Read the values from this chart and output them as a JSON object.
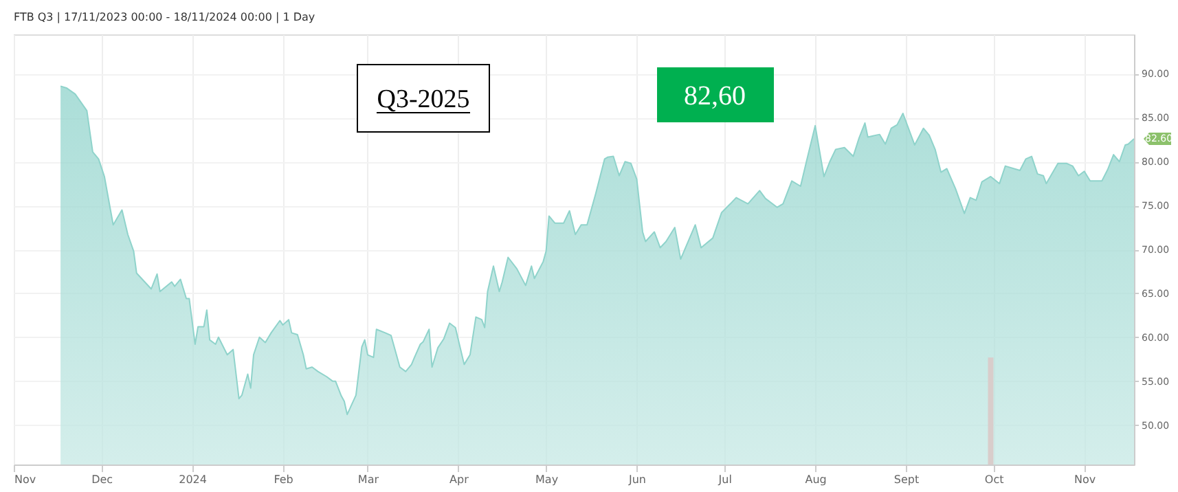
{
  "chart_data": {
    "type": "area",
    "title": "FTB Q3 | 17/11/2023 00:00 - 18/11/2024 00:00 | 1 Day",
    "xlim": [
      "2023-11-01",
      "2024-11-18"
    ],
    "xticks": [
      {
        "value": "2023-11-01",
        "label": "Nov"
      },
      {
        "value": "2023-12-01",
        "label": "Dec"
      },
      {
        "value": "2024-01-01",
        "label": "2024"
      },
      {
        "value": "2024-02-01",
        "label": "Feb"
      },
      {
        "value": "2024-03-01",
        "label": "Mar"
      },
      {
        "value": "2024-04-01",
        "label": "Apr"
      },
      {
        "value": "2024-05-01",
        "label": "May"
      },
      {
        "value": "2024-06-01",
        "label": "Jun"
      },
      {
        "value": "2024-07-01",
        "label": "Jul"
      },
      {
        "value": "2024-08-01",
        "label": "Aug"
      },
      {
        "value": "2024-09-01",
        "label": "Sept"
      },
      {
        "value": "2024-10-01",
        "label": "Oct"
      },
      {
        "value": "2024-11-01",
        "label": "Nov"
      }
    ],
    "ylim": [
      45.5,
      94.5
    ],
    "yticks": [
      {
        "value": 50,
        "label": "50.00"
      },
      {
        "value": 55,
        "label": "55.00"
      },
      {
        "value": 60,
        "label": "60.00"
      },
      {
        "value": 65,
        "label": "65.00"
      },
      {
        "value": 70,
        "label": "70.00"
      },
      {
        "value": 75,
        "label": "75.00"
      },
      {
        "value": 80,
        "label": "80.00"
      },
      {
        "value": 85,
        "label": "85.00"
      },
      {
        "value": 90,
        "label": "90.00"
      }
    ],
    "grid": true,
    "legend": false,
    "annotations": [
      "Q3-2025",
      "82,60",
      {
        "text": "82.60",
        "x": "2024-11-18",
        "y": 82.6
      }
    ],
    "series": [
      {
        "color": "#8fd3cb",
        "x": [
          "2023-11-17",
          "2023-11-19",
          "2023-11-22",
          "2023-11-26",
          "2023-11-28",
          "2023-11-30",
          "2023-12-02",
          "2023-12-05",
          "2023-12-08",
          "2023-12-10",
          "2023-12-12",
          "2023-12-13",
          "2023-12-18",
          "2023-12-20",
          "2023-12-21",
          "2023-12-25",
          "2023-12-26",
          "2023-12-28",
          "2023-12-30",
          "2023-12-31",
          "2024-01-02",
          "2024-01-03",
          "2024-01-05",
          "2024-01-06",
          "2024-01-07",
          "2024-01-09",
          "2024-01-10",
          "2024-01-13",
          "2024-01-15",
          "2024-01-17",
          "2024-01-18",
          "2024-01-20",
          "2024-01-21",
          "2024-01-22",
          "2024-01-24",
          "2024-01-26",
          "2024-01-28",
          "2024-01-31",
          "2024-02-01",
          "2024-02-03",
          "2024-02-04",
          "2024-02-06",
          "2024-02-08",
          "2024-02-09",
          "2024-02-11",
          "2024-02-13",
          "2024-02-16",
          "2024-02-18",
          "2024-02-19",
          "2024-02-21",
          "2024-02-22",
          "2024-02-23",
          "2024-02-26",
          "2024-02-28",
          "2024-02-29",
          "2024-03-01",
          "2024-03-03",
          "2024-03-04",
          "2024-03-07",
          "2024-03-09",
          "2024-03-12",
          "2024-03-14",
          "2024-03-16",
          "2024-03-17",
          "2024-03-19",
          "2024-03-20",
          "2024-03-22",
          "2024-03-23",
          "2024-03-25",
          "2024-03-27",
          "2024-03-29",
          "2024-03-31",
          "2024-04-03",
          "2024-04-05",
          "2024-04-07",
          "2024-04-09",
          "2024-04-10",
          "2024-04-11",
          "2024-04-13",
          "2024-04-15",
          "2024-04-16",
          "2024-04-18",
          "2024-04-21",
          "2024-04-24",
          "2024-04-26",
          "2024-04-27",
          "2024-04-30",
          "2024-05-01",
          "2024-05-02",
          "2024-05-04",
          "2024-05-07",
          "2024-05-09",
          "2024-05-11",
          "2024-05-13",
          "2024-05-15",
          "2024-05-18",
          "2024-05-21",
          "2024-05-22",
          "2024-05-24",
          "2024-05-26",
          "2024-05-28",
          "2024-05-30",
          "2024-06-01",
          "2024-06-03",
          "2024-06-04",
          "2024-06-07",
          "2024-06-09",
          "2024-06-11",
          "2024-06-14",
          "2024-06-16",
          "2024-06-21",
          "2024-06-23",
          "2024-06-27",
          "2024-06-30",
          "2024-07-03",
          "2024-07-05",
          "2024-07-09",
          "2024-07-13",
          "2024-07-15",
          "2024-07-19",
          "2024-07-21",
          "2024-07-24",
          "2024-07-27",
          "2024-07-29",
          "2024-08-01",
          "2024-08-04",
          "2024-08-06",
          "2024-08-08",
          "2024-08-11",
          "2024-08-14",
          "2024-08-16",
          "2024-08-18",
          "2024-08-19",
          "2024-08-23",
          "2024-08-25",
          "2024-08-27",
          "2024-08-29",
          "2024-08-31",
          "2024-09-04",
          "2024-09-07",
          "2024-09-09",
          "2024-09-11",
          "2024-09-13",
          "2024-09-15",
          "2024-09-18",
          "2024-09-21",
          "2024-09-23",
          "2024-09-25",
          "2024-09-27",
          "2024-09-30",
          "2024-10-03",
          "2024-10-05",
          "2024-10-10",
          "2024-10-12",
          "2024-10-14",
          "2024-10-16",
          "2024-10-18",
          "2024-10-19",
          "2024-10-23",
          "2024-10-26",
          "2024-10-28",
          "2024-10-30",
          "2024-11-01",
          "2024-11-03",
          "2024-11-07",
          "2024-11-09",
          "2024-11-11",
          "2024-11-13",
          "2024-11-15",
          "2024-11-16",
          "2024-11-18"
        ],
        "values": [
          88.6,
          88.4,
          87.7,
          85.8,
          81.1,
          80.3,
          78.3,
          72.8,
          74.5,
          71.7,
          69.8,
          67.3,
          65.5,
          67.2,
          65.2,
          66.3,
          65.8,
          66.6,
          64.4,
          64.4,
          59.2,
          61.2,
          61.2,
          63.1,
          59.7,
          59.2,
          60.0,
          58.0,
          58.6,
          53.0,
          53.4,
          55.8,
          54.2,
          58.0,
          60.0,
          59.4,
          60.5,
          61.9,
          61.4,
          62.0,
          60.5,
          60.3,
          58.0,
          56.4,
          56.6,
          56.1,
          55.5,
          55.0,
          55.0,
          53.3,
          52.7,
          51.2,
          53.4,
          58.9,
          59.7,
          58.0,
          57.7,
          60.9,
          60.5,
          60.2,
          56.6,
          56.1,
          56.9,
          57.7,
          59.2,
          59.5,
          60.9,
          56.6,
          58.8,
          59.8,
          61.6,
          61.1,
          56.9,
          58.0,
          62.3,
          62.0,
          61.1,
          65.2,
          68.1,
          65.2,
          66.3,
          69.1,
          67.8,
          65.9,
          68.1,
          66.7,
          68.6,
          69.8,
          73.8,
          73.0,
          73.0,
          74.4,
          71.7,
          72.8,
          72.8,
          76.4,
          80.3,
          80.5,
          80.6,
          78.4,
          80.0,
          79.8,
          78.0,
          72.0,
          70.9,
          72.0,
          70.2,
          70.9,
          72.5,
          68.9,
          72.8,
          70.2,
          71.3,
          74.2,
          75.2,
          75.9,
          75.2,
          76.7,
          75.8,
          74.8,
          75.2,
          77.8,
          77.2,
          80.0,
          84.1,
          78.3,
          80.0,
          81.4,
          81.6,
          80.6,
          82.7,
          84.4,
          82.8,
          83.1,
          82.0,
          83.8,
          84.2,
          85.5,
          81.9,
          83.8,
          83.0,
          81.4,
          78.8,
          79.2,
          76.9,
          74.1,
          75.9,
          75.6,
          77.7,
          78.3,
          77.5,
          79.5,
          79.0,
          80.3,
          80.6,
          78.6,
          78.4,
          77.5,
          79.8,
          79.8,
          79.5,
          78.4,
          78.9,
          77.8,
          77.8,
          79.1,
          80.8,
          80.0,
          81.9,
          82.0,
          82.6
        ]
      },
      {
        "type": "bar",
        "color": "#d9cdcb",
        "x": [
          "2024-09-30"
        ],
        "values": [
          57.7
        ]
      }
    ]
  }
}
